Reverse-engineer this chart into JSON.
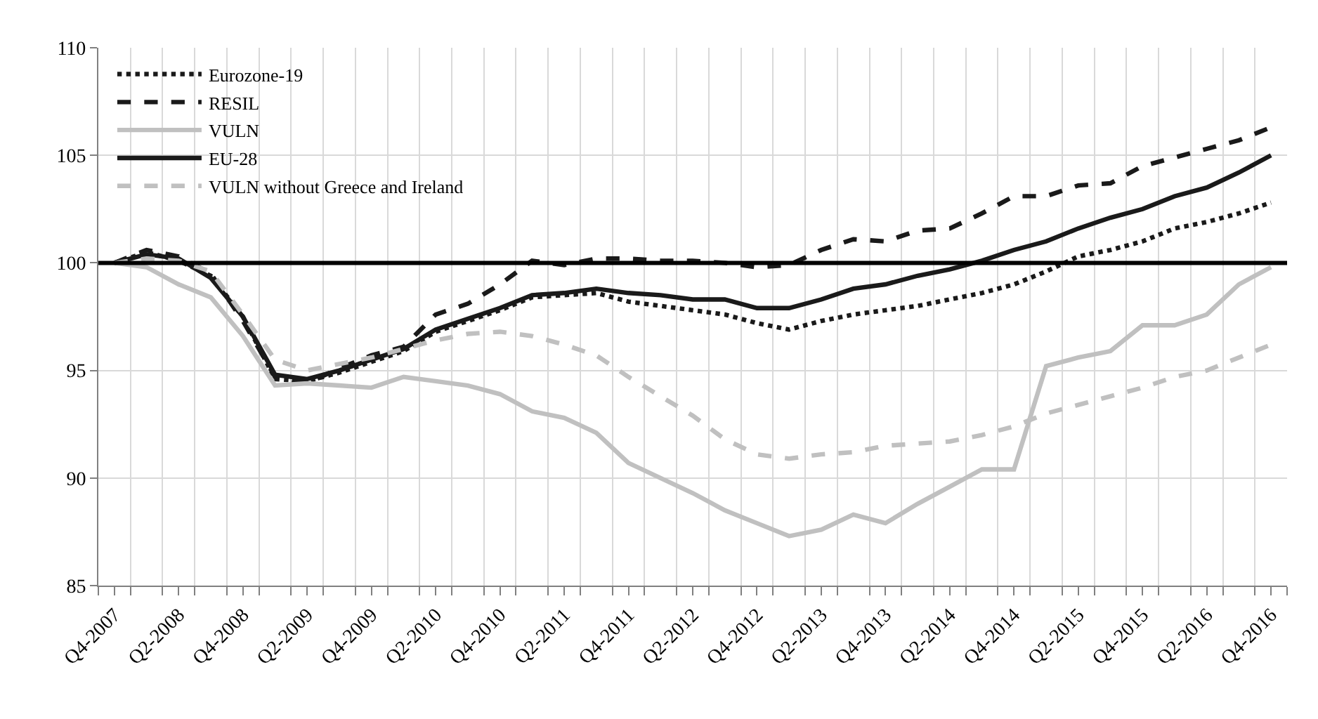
{
  "chart_data": {
    "type": "line",
    "categories": [
      "Q4-2007",
      null,
      "Q2-2008",
      null,
      "Q4-2008",
      null,
      "Q2-2009",
      null,
      "Q4-2009",
      null,
      "Q2-2010",
      null,
      "Q4-2010",
      null,
      "Q2-2011",
      null,
      "Q4-2011",
      null,
      "Q2-2012",
      null,
      "Q4-2012",
      null,
      "Q2-2013",
      null,
      "Q4-2013",
      null,
      "Q2-2014",
      null,
      "Q4-2014",
      null,
      "Q2-2015",
      null,
      "Q4-2015",
      null,
      "Q2-2016",
      null,
      "Q4-2016"
    ],
    "series": [
      {
        "name": "Eurozone-19",
        "color": "#1a1a1a",
        "line_style": "dotted",
        "values": [
          100,
          100.5,
          100.1,
          99.4,
          97.5,
          94.6,
          94.5,
          94.9,
          95.4,
          95.9,
          96.8,
          97.3,
          97.8,
          98.4,
          98.5,
          98.6,
          98.2,
          98.0,
          97.8,
          97.6,
          97.2,
          96.9,
          97.3,
          97.6,
          97.8,
          98.0,
          98.3,
          98.6,
          99.0,
          99.6,
          100.3,
          100.6,
          101.0,
          101.6,
          101.9,
          102.3,
          102.8
        ]
      },
      {
        "name": "RESIL",
        "color": "#1a1a1a",
        "line_style": "dashed",
        "values": [
          100,
          100.6,
          100.3,
          99.5,
          97.3,
          94.7,
          94.4,
          95.1,
          95.7,
          96.1,
          97.6,
          98.1,
          99.0,
          100.1,
          99.9,
          100.2,
          100.2,
          100.1,
          100.1,
          100.0,
          99.8,
          99.9,
          100.6,
          101.1,
          101.0,
          101.5,
          101.6,
          102.3,
          103.1,
          103.1,
          103.6,
          103.7,
          104.5,
          104.9,
          105.3,
          105.7,
          106.3
        ]
      },
      {
        "name": "VULN",
        "color": "#c0c0c0",
        "line_style": "solid",
        "values": [
          100,
          99.8,
          99.0,
          98.4,
          96.6,
          94.3,
          94.4,
          94.3,
          94.2,
          94.7,
          94.5,
          94.3,
          93.9,
          93.1,
          92.8,
          92.1,
          90.7,
          90.0,
          89.3,
          88.5,
          87.9,
          87.3,
          87.6,
          88.3,
          87.9,
          88.8,
          89.6,
          90.4,
          90.4,
          95.2,
          95.6,
          95.9,
          97.1,
          97.1,
          97.6,
          99.0,
          99.8
        ]
      },
      {
        "name": "EU-28",
        "color": "#1a1a1a",
        "line_style": "solid",
        "values": [
          100,
          100.4,
          100.2,
          99.3,
          97.5,
          94.8,
          94.6,
          95.0,
          95.5,
          96.0,
          96.9,
          97.4,
          97.9,
          98.5,
          98.6,
          98.8,
          98.6,
          98.5,
          98.3,
          98.3,
          97.9,
          97.9,
          98.3,
          98.8,
          99.0,
          99.4,
          99.7,
          100.1,
          100.6,
          101.0,
          101.6,
          102.1,
          102.5,
          103.1,
          103.5,
          104.2,
          105.0
        ]
      },
      {
        "name": "VULN without Greece and Ireland",
        "color": "#c0c0c0",
        "line_style": "dashed",
        "values": [
          100,
          100.2,
          100.1,
          99.6,
          97.6,
          95.5,
          95.0,
          95.3,
          95.6,
          96.0,
          96.4,
          96.7,
          96.8,
          96.6,
          96.2,
          95.7,
          94.7,
          93.8,
          92.9,
          91.8,
          91.1,
          90.9,
          91.1,
          91.2,
          91.5,
          91.6,
          91.7,
          92.0,
          92.4,
          93.0,
          93.4,
          93.8,
          94.2,
          94.7,
          95.0,
          95.6,
          96.2
        ]
      }
    ],
    "ylim": [
      85,
      110
    ],
    "yticks": [
      85,
      90,
      95,
      100,
      105,
      110
    ],
    "ref_lines": [
      {
        "axis": "y",
        "value": 100,
        "label": null,
        "color": "#000000",
        "line_style": "solid"
      }
    ],
    "grid": true,
    "legend": "top left",
    "marker": "none"
  }
}
